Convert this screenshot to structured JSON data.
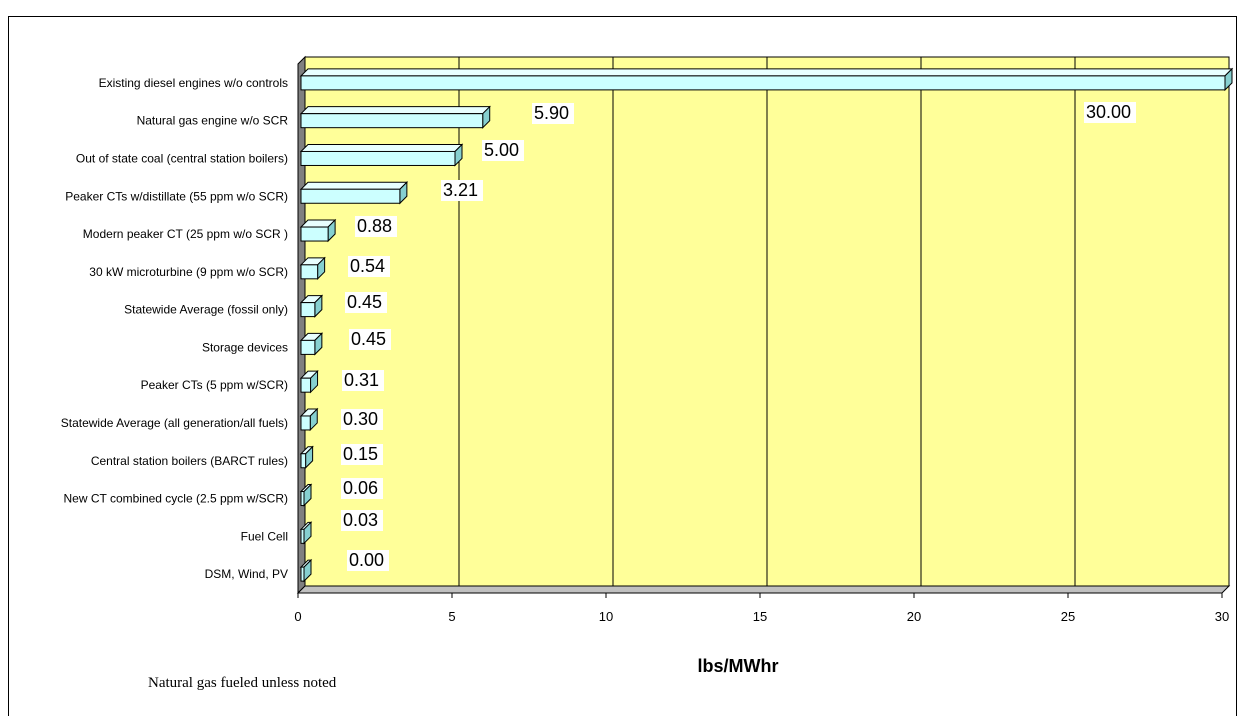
{
  "chart_data": {
    "type": "bar",
    "orientation": "horizontal",
    "categories": [
      "Existing diesel engines w/o controls",
      "Natural gas engine w/o SCR",
      "Out of state coal (central station boilers)",
      "Peaker CTs w/distillate (55 ppm w/o SCR)",
      "Modern peaker CT (25 ppm w/o SCR  )",
      "30 kW microturbine (9 ppm w/o SCR)",
      "Statewide Average (fossil only)",
      "Storage devices",
      "Peaker CTs (5 ppm w/SCR)",
      "Statewide Average (all generation/all fuels)",
      "Central station boilers (BARCT rules)",
      "New CT combined cycle (2.5 ppm w/SCR)",
      "Fuel Cell",
      "DSM, Wind, PV"
    ],
    "values": [
      30.0,
      5.9,
      5.0,
      3.21,
      0.88,
      0.54,
      0.45,
      0.45,
      0.31,
      0.3,
      0.15,
      0.06,
      0.03,
      0.0
    ],
    "data_labels": [
      "30.00",
      "5.90",
      "5.00",
      "3.21",
      "0.88",
      "0.54",
      "0.45",
      "0.45",
      "0.31",
      "0.30",
      "0.15",
      "0.06",
      "0.03",
      "0.00"
    ],
    "xlabel": "lbs/MWhr",
    "xlim": [
      0,
      30
    ],
    "xticks": [
      "0",
      "5",
      "10",
      "15",
      "20",
      "25",
      "30"
    ],
    "grid": "vertical",
    "three_d": true,
    "note": "Natural gas fueled unless noted",
    "colors": {
      "plot_background": "#ffff99",
      "bar_face": "#ccffff",
      "bar_side": "#86d0d0",
      "bar_top": "#e8ffff",
      "wall_side": "#808080",
      "floor": "#c0c0c0"
    }
  }
}
